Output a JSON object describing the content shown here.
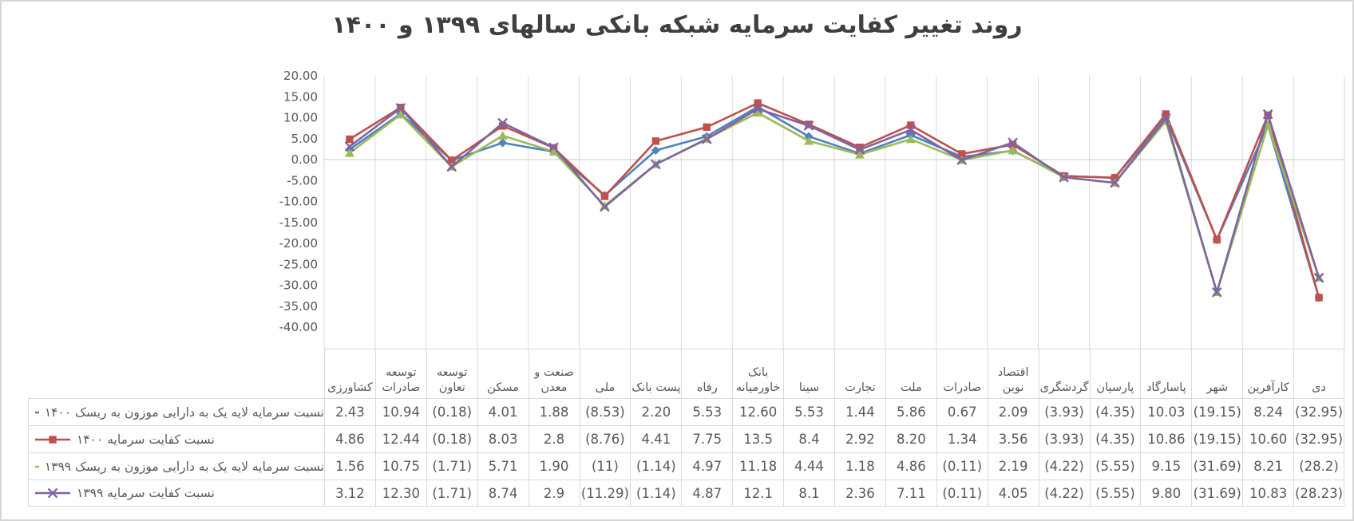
{
  "chart_data": {
    "type": "line",
    "title": "روند تغییر کفایت سرمایه شبکه بانکی سالهای ۱۳۹۹ و ۱۴۰۰",
    "grid": "vertical-only",
    "legend_position": "data-table-left-column",
    "ylim": [
      -40,
      20
    ],
    "y_ticks": [
      "20.00",
      "15.00",
      "10.00",
      "5.00",
      "0.00",
      "-5.00",
      "-10.00",
      "-15.00",
      "-20.00",
      "-25.00",
      "-30.00",
      "-35.00",
      "-40.00"
    ],
    "categories": [
      "کشاورزی",
      "توسعه صادرات",
      "توسعه تعاون",
      "مسکن",
      "صنعت و معدن",
      "ملی",
      "پست بانک",
      "رفاه",
      "بانک خاورمیانه",
      "سینا",
      "تجارت",
      "ملت",
      "صادرات",
      "اقتصاد نوین",
      "گردشگری",
      "پارسیان",
      "پاسارگاد",
      "شهر",
      "کارآفرین",
      "دی"
    ],
    "series": [
      {
        "name": "نسبت سرمایه لایه یک به دارایی موزون به ریسک ۱۴۰۰",
        "color": "#4F81BD",
        "marker": "diamond",
        "values": [
          2.43,
          10.94,
          -0.18,
          4.01,
          1.88,
          -8.53,
          2.2,
          5.53,
          12.6,
          5.53,
          1.44,
          5.86,
          0.67,
          2.09,
          -3.93,
          -4.35,
          10.03,
          -19.15,
          8.24,
          -32.95
        ],
        "display": [
          "2.43",
          "10.94",
          "(0.18)",
          "4.01",
          "1.88",
          "(8.53)",
          "2.20",
          "5.53",
          "12.60",
          "5.53",
          "1.44",
          "5.86",
          "0.67",
          "2.09",
          "(3.93)",
          "(4.35)",
          "10.03",
          "(19.15)",
          "8.24",
          "(32.95)"
        ]
      },
      {
        "name": "نسبت کفایت سرمایه ۱۴۰۰",
        "color": "#C0504D",
        "marker": "square",
        "values": [
          4.86,
          12.44,
          -0.18,
          8.03,
          2.8,
          -8.76,
          4.41,
          7.75,
          13.5,
          8.4,
          2.92,
          8.2,
          1.34,
          3.56,
          -3.93,
          -4.35,
          10.86,
          -19.15,
          10.6,
          -32.95
        ],
        "display": [
          "4.86",
          "12.44",
          "(0.18)",
          "8.03",
          "2.8",
          "(8.76)",
          "4.41",
          "7.75",
          "13.5",
          "8.4",
          "2.92",
          "8.20",
          "1.34",
          "3.56",
          "(3.93)",
          "(4.35)",
          "10.86",
          "(19.15)",
          "10.60",
          "(32.95)"
        ]
      },
      {
        "name": "نسبت سرمایه لایه یک به دارایی موزون به ریسک ۱۳۹۹",
        "color": "#9BBB59",
        "marker": "triangle",
        "values": [
          1.56,
          10.75,
          -1.71,
          5.71,
          1.9,
          -11,
          -1.14,
          4.97,
          11.18,
          4.44,
          1.18,
          4.86,
          -0.11,
          2.19,
          -4.22,
          -5.55,
          9.15,
          -31.69,
          8.21,
          -28.2
        ],
        "display": [
          "1.56",
          "10.75",
          "(1.71)",
          "5.71",
          "1.90",
          "(11)",
          "(1.14)",
          "4.97",
          "11.18",
          "4.44",
          "1.18",
          "4.86",
          "(0.11)",
          "2.19",
          "(4.22)",
          "(5.55)",
          "9.15",
          "(31.69)",
          "8.21",
          "(28.2)"
        ]
      },
      {
        "name": "نسبت کفایت سرمایه ۱۳۹۹",
        "color": "#8064A2",
        "marker": "x",
        "values": [
          3.12,
          12.3,
          -1.71,
          8.74,
          2.9,
          -11.29,
          -1.14,
          4.87,
          12.1,
          8.1,
          2.36,
          7.11,
          -0.11,
          4.05,
          -4.22,
          -5.55,
          9.8,
          -31.69,
          10.83,
          -28.23
        ],
        "display": [
          "3.12",
          "12.30",
          "(1.71)",
          "8.74",
          "2.9",
          "(11.29)",
          "(1.14)",
          "4.87",
          "12.1",
          "8.1",
          "2.36",
          "7.11",
          "(0.11)",
          "4.05",
          "(4.22)",
          "(5.55)",
          "9.80",
          "(31.69)",
          "10.83",
          "(28.23)"
        ]
      }
    ],
    "colors": {
      "gridline": "#dadada",
      "zero_axis": "#c9c9c9",
      "axis_text": "#595959",
      "title_text": "#3f3f3f"
    }
  }
}
